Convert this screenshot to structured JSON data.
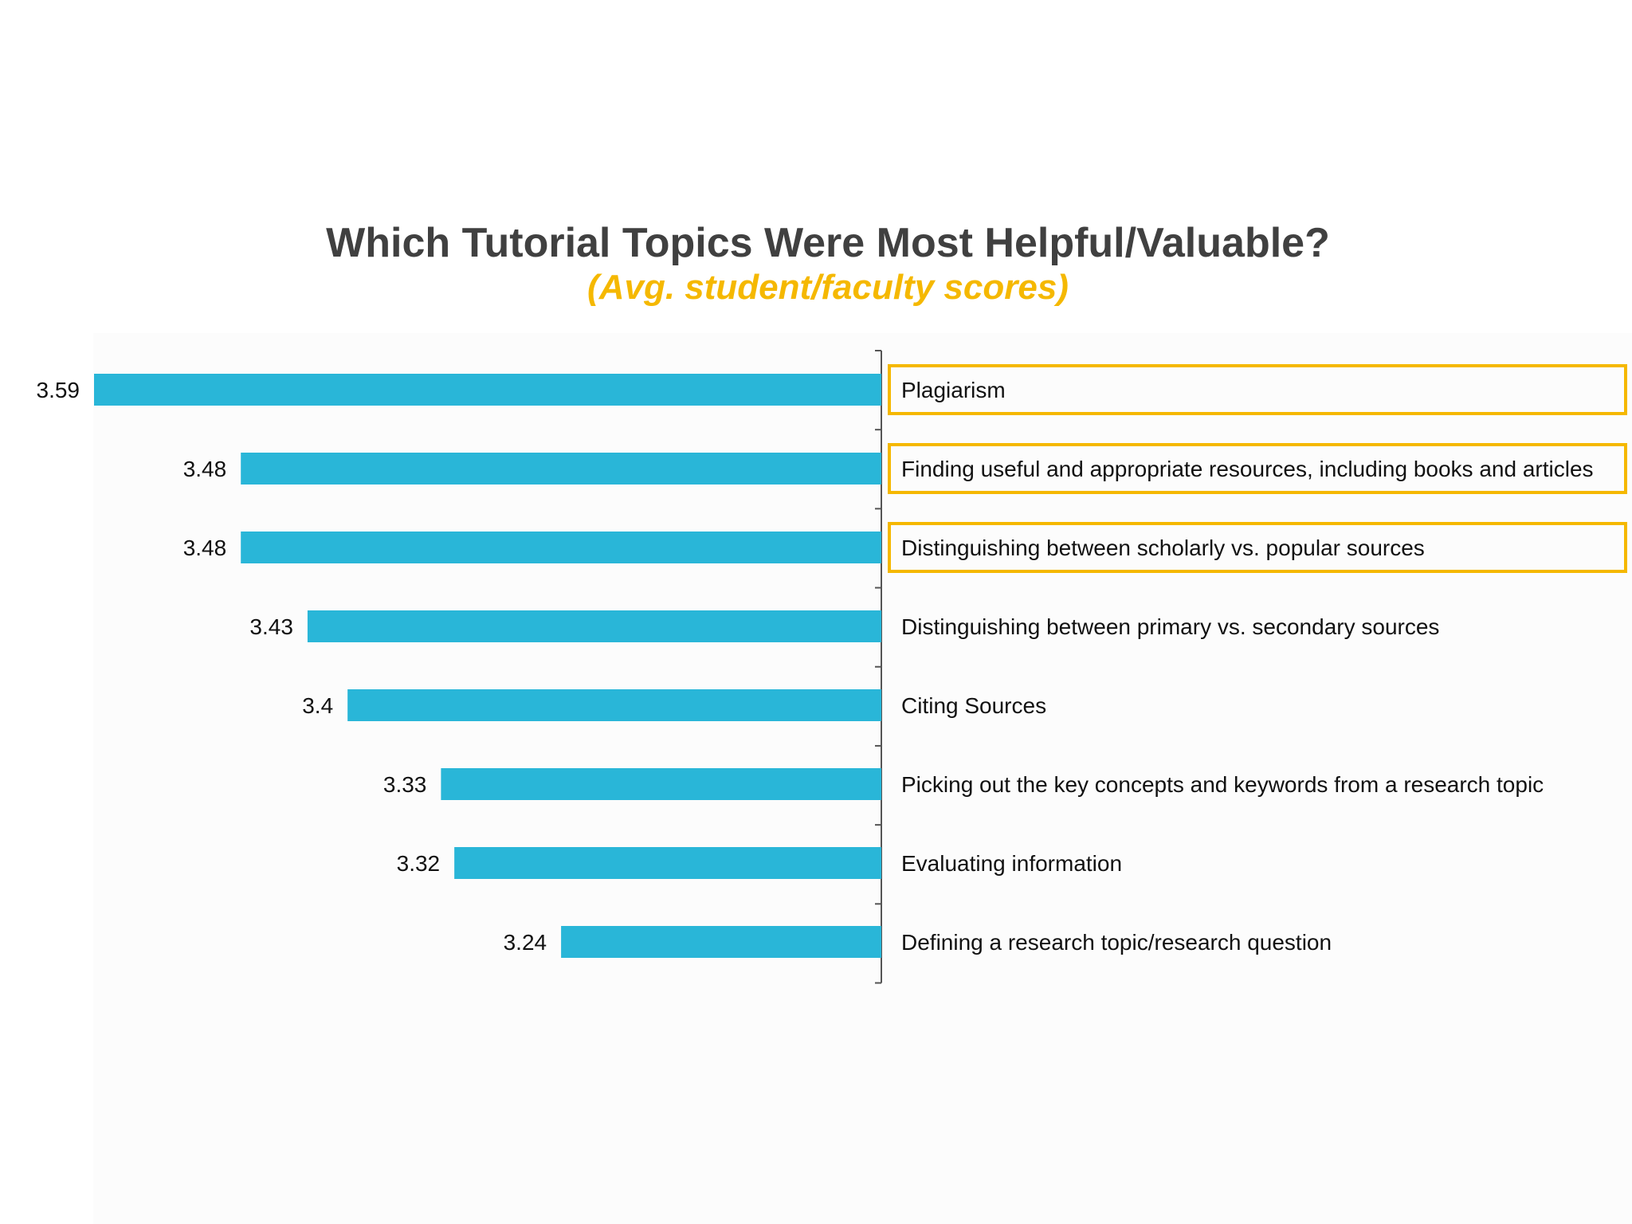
{
  "chart_data": {
    "type": "bar",
    "orientation": "horizontal",
    "title": "Which Tutorial Topics Were Most Helpful/Valuable?",
    "subtitle": "(Avg. student/faculty scores)",
    "categories": [
      "Plagiarism",
      "Finding useful and appropriate resources, including books and articles",
      "Distinguishing between scholarly vs. popular sources",
      "Distinguishing between primary vs. secondary sources",
      "Citing Sources",
      "Picking out the key concepts and keywords from a research topic",
      "Evaluating information",
      "Defining a research topic/research question"
    ],
    "values": [
      3.59,
      3.48,
      3.48,
      3.43,
      3.4,
      3.33,
      3.32,
      3.24
    ],
    "value_labels": [
      "3.59",
      "3.48",
      "3.48",
      "3.43",
      "3.4",
      "3.33",
      "3.32",
      "3.24"
    ],
    "highlighted": [
      true,
      true,
      true,
      false,
      false,
      false,
      false,
      false
    ],
    "bar_direction": "extends-left-from-axis",
    "axis_min": 3.0,
    "axis_max": 3.59,
    "grid": false,
    "legend": "none"
  },
  "colors": {
    "title": "#404040",
    "subtitle": "#F5B800",
    "bar": "#29B6D8",
    "highlight_border": "#F5B800",
    "axis": "#555555",
    "text": "#111111"
  }
}
